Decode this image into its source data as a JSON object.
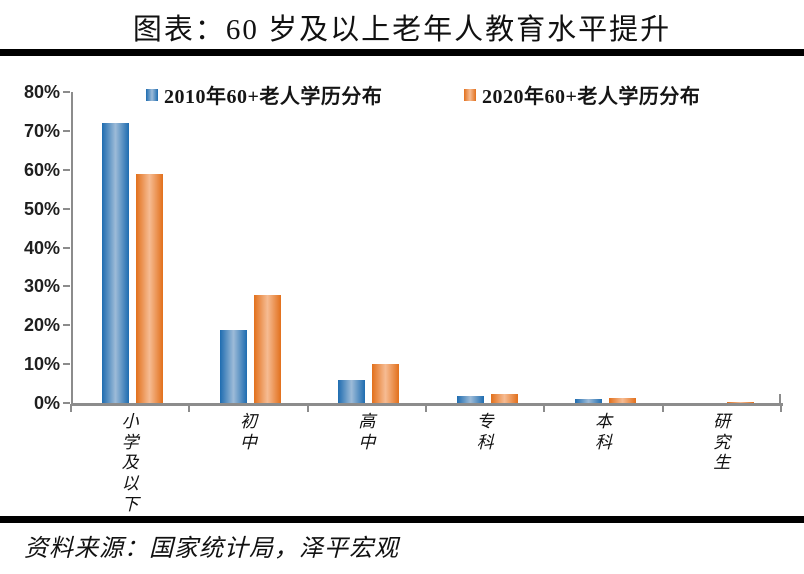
{
  "page": {
    "title": "图表：60 岁及以上老年人教育水平提升",
    "source": "资料来源：国家统计局，泽平宏观"
  },
  "colors": {
    "axis": "#8C8C8C",
    "divider": "#000000",
    "series_2010": "#2070B4",
    "series_2020": "#E5731F"
  },
  "chart_data": {
    "type": "bar",
    "title": "图表：60 岁及以上老年人教育水平提升",
    "categories": [
      "小学及以下",
      "初中",
      "高中",
      "专科",
      "本科",
      "研究生"
    ],
    "series": [
      {
        "name": "2010年60+老人学历分布",
        "color": "#2070B4",
        "gradient": [
          "#1E6CB0",
          "#9DBBD8",
          "#1E6CB0"
        ],
        "values": [
          72.1,
          18.9,
          5.9,
          1.9,
          1.1,
          0.1
        ]
      },
      {
        "name": "2020年60+老人学历分布",
        "color": "#E5731F",
        "gradient": [
          "#E2701C",
          "#F6BC93",
          "#E2701C"
        ],
        "values": [
          58.8,
          27.7,
          10.0,
          2.4,
          1.2,
          0.2
        ]
      }
    ],
    "xlabel": "",
    "ylabel": "",
    "ylim": [
      0,
      80
    ],
    "yticks": [
      "0%",
      "10%",
      "20%",
      "30%",
      "40%",
      "50%",
      "60%",
      "70%",
      "80%"
    ],
    "grid": false,
    "legend_position": "top",
    "source": "资料来源：国家统计局，泽平宏观"
  }
}
